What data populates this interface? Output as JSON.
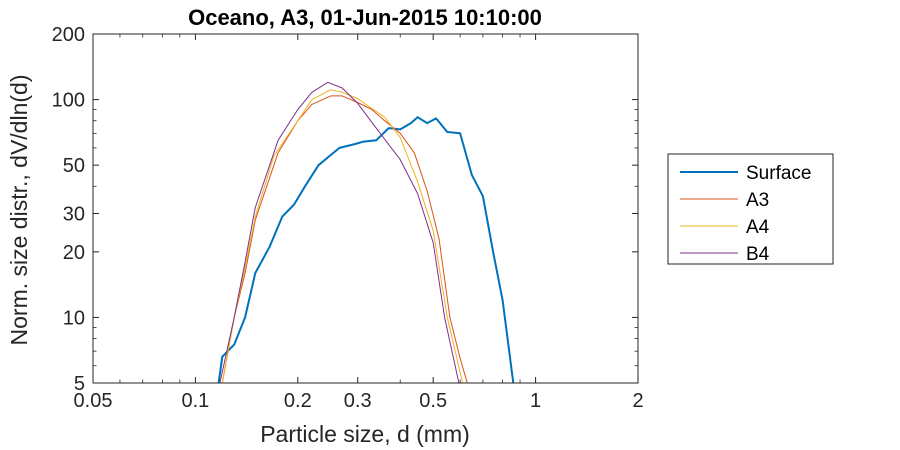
{
  "chart_data": {
    "type": "line",
    "title": "Oceano, A3, 01-Jun-2015 10:10:00",
    "xlabel": "Particle size, d (mm)",
    "ylabel": "Norm. size distr., dV/dln(d)",
    "xscale": "log",
    "yscale": "log",
    "xlim": [
      0.05,
      2
    ],
    "ylim": [
      5,
      200
    ],
    "xticks": [
      0.05,
      0.1,
      0.2,
      0.3,
      0.5,
      1,
      2
    ],
    "xtick_labels": [
      "0.05",
      "0.1",
      "0.2",
      "0.3",
      "0.5",
      "1",
      "2"
    ],
    "yticks": [
      5,
      10,
      20,
      30,
      50,
      100,
      200
    ],
    "ytick_labels": [
      "5",
      "10",
      "20",
      "30",
      "50",
      "100",
      "200"
    ],
    "grid": false,
    "legend_position": "right",
    "series": [
      {
        "name": "Surface",
        "color": "#0072BD",
        "width": 2,
        "points": [
          [
            0.117,
            5
          ],
          [
            0.12,
            6.6
          ],
          [
            0.13,
            7.5
          ],
          [
            0.14,
            10
          ],
          [
            0.15,
            16
          ],
          [
            0.165,
            21
          ],
          [
            0.18,
            29
          ],
          [
            0.195,
            33
          ],
          [
            0.21,
            40
          ],
          [
            0.23,
            50
          ],
          [
            0.265,
            60
          ],
          [
            0.295,
            62.5
          ],
          [
            0.31,
            64
          ],
          [
            0.34,
            65
          ],
          [
            0.37,
            74
          ],
          [
            0.4,
            73
          ],
          [
            0.43,
            78
          ],
          [
            0.45,
            83
          ],
          [
            0.48,
            78
          ],
          [
            0.51,
            82
          ],
          [
            0.55,
            71
          ],
          [
            0.6,
            70
          ],
          [
            0.65,
            45
          ],
          [
            0.7,
            36
          ],
          [
            0.75,
            20
          ],
          [
            0.8,
            12
          ],
          [
            0.86,
            5
          ]
        ]
      },
      {
        "name": "A3",
        "color": "#D95319",
        "width": 1,
        "points": [
          [
            0.12,
            5
          ],
          [
            0.13,
            10
          ],
          [
            0.14,
            16
          ],
          [
            0.15,
            28
          ],
          [
            0.175,
            57
          ],
          [
            0.2,
            80
          ],
          [
            0.22,
            95
          ],
          [
            0.25,
            104
          ],
          [
            0.27,
            104
          ],
          [
            0.3,
            97
          ],
          [
            0.33,
            90
          ],
          [
            0.36,
            80
          ],
          [
            0.4,
            70
          ],
          [
            0.44,
            57
          ],
          [
            0.48,
            38
          ],
          [
            0.52,
            23
          ],
          [
            0.56,
            10
          ],
          [
            0.6,
            6.5
          ],
          [
            0.63,
            5
          ]
        ]
      },
      {
        "name": "A4",
        "color": "#EDB120",
        "width": 1,
        "points": [
          [
            0.12,
            5
          ],
          [
            0.13,
            10
          ],
          [
            0.14,
            17
          ],
          [
            0.15,
            29
          ],
          [
            0.17,
            55
          ],
          [
            0.2,
            80
          ],
          [
            0.22,
            100
          ],
          [
            0.25,
            111
          ],
          [
            0.27,
            108
          ],
          [
            0.3,
            101
          ],
          [
            0.32,
            94
          ],
          [
            0.36,
            83
          ],
          [
            0.4,
            67
          ],
          [
            0.45,
            42
          ],
          [
            0.5,
            25
          ],
          [
            0.55,
            10
          ],
          [
            0.61,
            5
          ]
        ]
      },
      {
        "name": "B4",
        "color": "#7E2F8E",
        "width": 1,
        "points": [
          [
            0.118,
            5
          ],
          [
            0.13,
            10
          ],
          [
            0.14,
            18
          ],
          [
            0.15,
            32
          ],
          [
            0.175,
            65
          ],
          [
            0.2,
            90
          ],
          [
            0.22,
            108
          ],
          [
            0.245,
            120
          ],
          [
            0.27,
            113
          ],
          [
            0.3,
            96
          ],
          [
            0.34,
            74
          ],
          [
            0.4,
            53
          ],
          [
            0.45,
            37
          ],
          [
            0.5,
            22
          ],
          [
            0.54,
            10
          ],
          [
            0.595,
            5
          ]
        ]
      }
    ]
  }
}
